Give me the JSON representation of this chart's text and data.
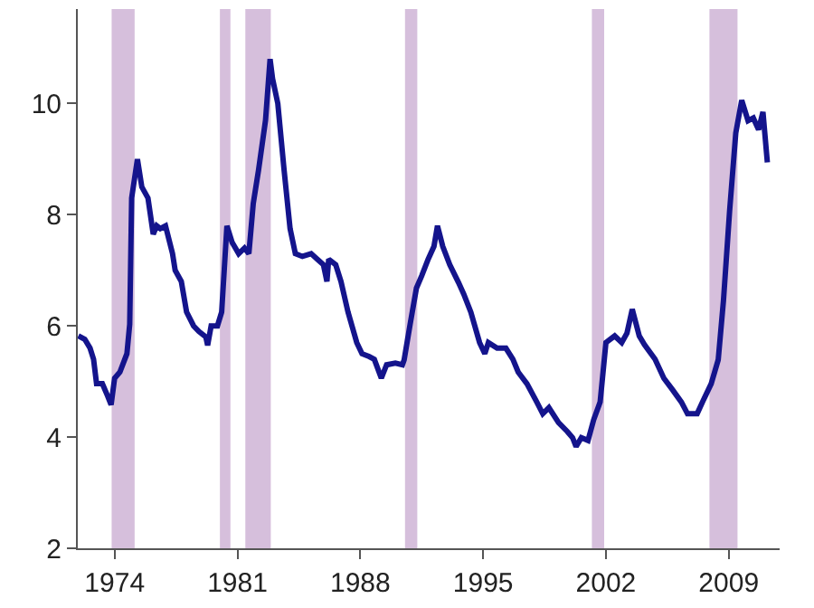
{
  "chart_data": {
    "type": "line",
    "x": [
      1971.93,
      1972.3,
      1972.6,
      1972.8,
      1972.97,
      1973.3,
      1973.6,
      1973.8,
      1974.0,
      1974.3,
      1974.7,
      1974.86,
      1974.97,
      1975.3,
      1975.55,
      1975.9,
      1976.2,
      1976.4,
      1976.6,
      1976.9,
      1977.3,
      1977.45,
      1977.8,
      1978.1,
      1978.5,
      1978.8,
      1979.2,
      1979.3,
      1979.5,
      1979.86,
      1980.1,
      1980.4,
      1980.7,
      1981.07,
      1981.4,
      1981.65,
      1981.9,
      1982.2,
      1982.6,
      1982.86,
      1983.0,
      1983.3,
      1983.66,
      1984.0,
      1984.3,
      1984.7,
      1985.2,
      1985.55,
      1985.9,
      1986.1,
      1986.2,
      1986.6,
      1986.9,
      1987.3,
      1987.8,
      1988.1,
      1988.5,
      1988.8,
      1989.2,
      1989.5,
      1990.0,
      1990.4,
      1990.5,
      1990.84,
      1991.2,
      1991.5,
      1991.87,
      1992.2,
      1992.4,
      1992.7,
      1993.1,
      1993.6,
      1993.9,
      1994.3,
      1994.8,
      1995.1,
      1995.3,
      1995.8,
      1996.3,
      1996.7,
      1997.0,
      1997.5,
      1998.06,
      1998.4,
      1998.75,
      1999.3,
      1999.8,
      2000.1,
      2000.3,
      2000.6,
      2000.98,
      2001.3,
      2001.67,
      2002.0,
      2002.5,
      2002.9,
      2003.2,
      2003.5,
      2003.9,
      2004.2,
      2004.8,
      2005.3,
      2005.8,
      2006.3,
      2006.65,
      2007.2,
      2007.5,
      2008.0,
      2008.4,
      2008.7,
      2009.05,
      2009.4,
      2009.74,
      2010.1,
      2010.4,
      2010.7,
      2010.95,
      2011.2
    ],
    "series": [
      {
        "color": "#14148c",
        "values": [
          5.82,
          5.76,
          5.6,
          5.4,
          4.96,
          4.96,
          4.74,
          4.58,
          5.06,
          5.17,
          5.5,
          6.03,
          8.3,
          9.0,
          8.5,
          8.3,
          7.65,
          7.8,
          7.75,
          7.8,
          7.3,
          7.0,
          6.8,
          6.25,
          6.0,
          5.9,
          5.8,
          5.65,
          6.0,
          6.0,
          6.25,
          7.8,
          7.5,
          7.3,
          7.4,
          7.3,
          8.2,
          8.8,
          9.7,
          10.8,
          10.45,
          10.0,
          8.8,
          7.75,
          7.3,
          7.25,
          7.3,
          7.2,
          7.1,
          6.8,
          7.2,
          7.1,
          6.8,
          6.25,
          5.7,
          5.5,
          5.45,
          5.4,
          5.06,
          5.3,
          5.33,
          5.3,
          5.39,
          6.03,
          6.68,
          6.9,
          7.2,
          7.43,
          7.8,
          7.43,
          7.1,
          6.78,
          6.57,
          6.25,
          5.7,
          5.5,
          5.7,
          5.6,
          5.6,
          5.4,
          5.17,
          4.96,
          4.63,
          4.42,
          4.53,
          4.26,
          4.1,
          3.99,
          3.83,
          3.99,
          3.94,
          4.31,
          4.63,
          5.7,
          5.82,
          5.7,
          5.87,
          6.3,
          5.82,
          5.66,
          5.4,
          5.06,
          4.85,
          4.63,
          4.42,
          4.42,
          4.63,
          4.96,
          5.39,
          6.46,
          8.07,
          9.47,
          10.06,
          9.69,
          9.74,
          9.53,
          9.85,
          8.94
        ]
      }
    ],
    "xlim": [
      1971.9,
      2011.9
    ],
    "xticks": [
      1974,
      1981,
      1988,
      1995,
      2002,
      2009
    ],
    "ylim": [
      2,
      11.7
    ],
    "yticks": [
      2,
      4,
      6,
      8,
      10
    ],
    "bands": [
      {
        "axis": "x",
        "from": 1973.83,
        "to": 1975.14,
        "color": "#d6bfdc"
      },
      {
        "axis": "x",
        "from": 1980.0,
        "to": 1980.6,
        "color": "#d6bfdc"
      },
      {
        "axis": "x",
        "from": 1981.45,
        "to": 1982.9,
        "color": "#d6bfdc"
      },
      {
        "axis": "x",
        "from": 1990.55,
        "to": 1991.25,
        "color": "#d6bfdc"
      },
      {
        "axis": "x",
        "from": 2001.2,
        "to": 2001.9,
        "color": "#d6bfdc"
      },
      {
        "axis": "x",
        "from": 2007.9,
        "to": 2009.5,
        "color": "#d6bfdc"
      }
    ],
    "grid": false,
    "marker": "none",
    "line_style": "solid"
  }
}
